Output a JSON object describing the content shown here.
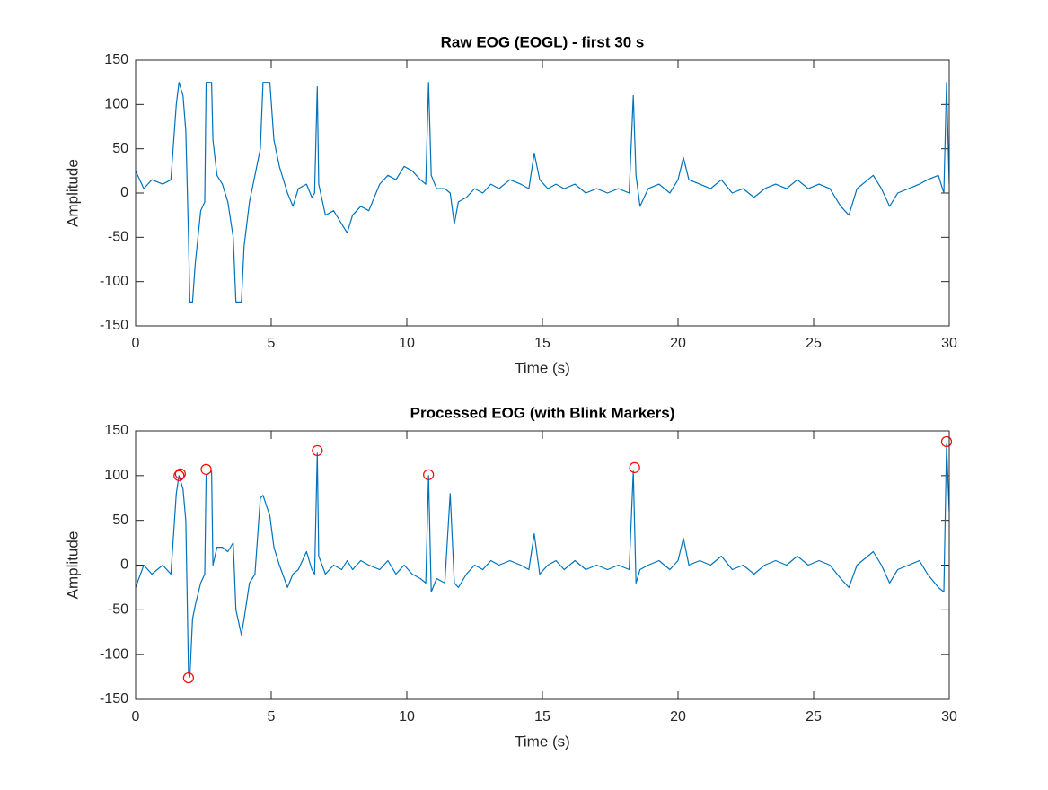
{
  "chart_data": [
    {
      "type": "line",
      "title": "Raw EOG (EOGL) - first 30 s",
      "x_label": "Time (s)",
      "y_label": "Amplitude",
      "xlim": [
        0,
        30
      ],
      "xticks": [
        0,
        5,
        10,
        15,
        20,
        25,
        30
      ],
      "ylim": [
        -150,
        150
      ],
      "yticks": [
        -150,
        -100,
        -50,
        0,
        50,
        100,
        150
      ],
      "grid": false,
      "series": [
        {
          "type": "line",
          "color": "#0072bd",
          "x": [
            0,
            0.3,
            0.6,
            1.0,
            1.3,
            1.5,
            1.6,
            1.75,
            1.85,
            1.95,
            2.0,
            2.1,
            2.2,
            2.4,
            2.55,
            2.6,
            2.8,
            2.85,
            3.0,
            3.2,
            3.4,
            3.6,
            3.7,
            3.9,
            4.0,
            4.2,
            4.4,
            4.6,
            4.7,
            4.95,
            5.1,
            5.3,
            5.6,
            5.8,
            6.0,
            6.3,
            6.5,
            6.6,
            6.7,
            6.75,
            7.0,
            7.3,
            7.6,
            7.8,
            8.0,
            8.3,
            8.6,
            9.0,
            9.3,
            9.6,
            9.9,
            10.2,
            10.5,
            10.7,
            10.8,
            10.9,
            11.1,
            11.4,
            11.6,
            11.75,
            11.9,
            12.2,
            12.5,
            12.8,
            13.1,
            13.4,
            13.8,
            14.2,
            14.5,
            14.7,
            14.9,
            15.2,
            15.5,
            15.8,
            16.2,
            16.6,
            17.0,
            17.4,
            17.8,
            18.2,
            18.35,
            18.45,
            18.6,
            18.9,
            19.3,
            19.7,
            20.0,
            20.2,
            20.4,
            20.8,
            21.2,
            21.6,
            22.0,
            22.4,
            22.8,
            23.2,
            23.6,
            24.0,
            24.4,
            24.8,
            25.2,
            25.6,
            26.0,
            26.3,
            26.6,
            27.0,
            27.2,
            27.5,
            27.8,
            28.1,
            28.5,
            28.9,
            29.2,
            29.6,
            29.8,
            29.9,
            30.0
          ],
          "values": [
            25,
            5,
            15,
            10,
            15,
            100,
            125,
            110,
            70,
            -50,
            -123,
            -123,
            -80,
            -20,
            -10,
            125,
            125,
            60,
            20,
            10,
            -10,
            -50,
            -123,
            -123,
            -60,
            -10,
            20,
            50,
            125,
            125,
            60,
            30,
            0,
            -15,
            5,
            10,
            -5,
            0,
            120,
            10,
            -25,
            -20,
            -35,
            -45,
            -25,
            -15,
            -20,
            10,
            20,
            15,
            30,
            25,
            15,
            10,
            125,
            20,
            5,
            5,
            0,
            -35,
            -10,
            -5,
            5,
            0,
            10,
            5,
            15,
            10,
            5,
            45,
            15,
            5,
            10,
            5,
            10,
            0,
            5,
            0,
            5,
            0,
            110,
            20,
            -15,
            5,
            10,
            0,
            15,
            40,
            15,
            10,
            5,
            15,
            0,
            5,
            -5,
            5,
            10,
            5,
            15,
            5,
            10,
            5,
            -15,
            -25,
            5,
            15,
            20,
            5,
            -15,
            0,
            5,
            10,
            15,
            20,
            0,
            125,
            10
          ]
        }
      ]
    },
    {
      "type": "line",
      "title": "Processed EOG (with Blink Markers)",
      "x_label": "Time (s)",
      "y_label": "Amplitude",
      "xlim": [
        0,
        30
      ],
      "xticks": [
        0,
        5,
        10,
        15,
        20,
        25,
        30
      ],
      "ylim": [
        -150,
        150
      ],
      "yticks": [
        -150,
        -100,
        -50,
        0,
        50,
        100,
        150
      ],
      "grid": false,
      "series": [
        {
          "type": "line",
          "color": "#0072bd",
          "x": [
            0,
            0.3,
            0.6,
            1.0,
            1.3,
            1.5,
            1.6,
            1.75,
            1.85,
            1.95,
            2.0,
            2.1,
            2.2,
            2.4,
            2.55,
            2.6,
            2.8,
            2.85,
            3.0,
            3.2,
            3.4,
            3.6,
            3.7,
            3.9,
            4.0,
            4.2,
            4.4,
            4.6,
            4.7,
            4.95,
            5.1,
            5.3,
            5.6,
            5.8,
            6.0,
            6.3,
            6.5,
            6.6,
            6.7,
            6.75,
            7.0,
            7.3,
            7.6,
            7.8,
            8.0,
            8.3,
            8.6,
            9.0,
            9.3,
            9.6,
            9.9,
            10.2,
            10.5,
            10.7,
            10.8,
            10.9,
            11.1,
            11.4,
            11.6,
            11.75,
            11.9,
            12.2,
            12.5,
            12.8,
            13.1,
            13.4,
            13.8,
            14.2,
            14.5,
            14.7,
            14.9,
            15.2,
            15.5,
            15.8,
            16.2,
            16.6,
            17.0,
            17.4,
            17.8,
            18.2,
            18.35,
            18.45,
            18.6,
            18.9,
            19.3,
            19.7,
            20.0,
            20.2,
            20.4,
            20.8,
            21.2,
            21.6,
            22.0,
            22.4,
            22.8,
            23.2,
            23.6,
            24.0,
            24.4,
            24.8,
            25.2,
            25.6,
            26.0,
            26.3,
            26.6,
            27.0,
            27.2,
            27.5,
            27.8,
            28.1,
            28.5,
            28.9,
            29.2,
            29.6,
            29.8,
            29.9,
            30.0
          ],
          "values": [
            -25,
            0,
            -10,
            0,
            -10,
            80,
            100,
            85,
            50,
            -120,
            -125,
            -60,
            -45,
            -20,
            -10,
            100,
            105,
            0,
            20,
            20,
            15,
            25,
            -50,
            -78,
            -60,
            -20,
            -10,
            75,
            78,
            55,
            20,
            0,
            -25,
            -10,
            -5,
            15,
            -5,
            -10,
            125,
            10,
            -10,
            0,
            -5,
            5,
            -5,
            5,
            0,
            -5,
            5,
            -10,
            0,
            -10,
            -15,
            -20,
            100,
            -30,
            -15,
            -20,
            80,
            -20,
            -25,
            -10,
            0,
            -5,
            5,
            0,
            5,
            0,
            -5,
            35,
            -10,
            0,
            5,
            -5,
            5,
            -5,
            0,
            -5,
            0,
            -5,
            105,
            -20,
            -5,
            0,
            5,
            -5,
            5,
            30,
            0,
            5,
            0,
            10,
            -5,
            0,
            -10,
            0,
            5,
            0,
            10,
            0,
            5,
            0,
            -15,
            -25,
            0,
            10,
            15,
            0,
            -20,
            -5,
            0,
            5,
            -10,
            -25,
            -30,
            135,
            60
          ]
        },
        {
          "type": "scatter",
          "marker": "circle",
          "color": "#ff0000",
          "x": [
            1.6,
            1.65,
            1.95,
            2.6,
            6.7,
            10.8,
            18.4,
            29.9
          ],
          "values": [
            100,
            102,
            -126,
            107,
            128,
            101,
            109,
            138
          ]
        }
      ]
    }
  ]
}
